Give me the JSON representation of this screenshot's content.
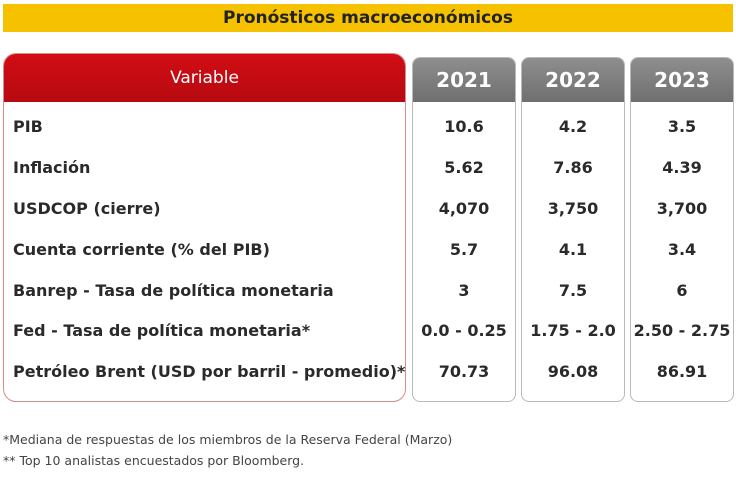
{
  "title": "Pronósticos macroeconómicos",
  "header": {
    "variable": "Variable",
    "years": [
      "2021",
      "2022",
      "2023"
    ]
  },
  "rows": [
    {
      "label": "PIB",
      "values": [
        "10.6",
        "4.2",
        "3.5"
      ]
    },
    {
      "label": "Inflación",
      "values": [
        "5.62",
        "7.86",
        "4.39"
      ]
    },
    {
      "label": "USDCOP (cierre)",
      "values": [
        "4,070",
        "3,750",
        "3,700"
      ]
    },
    {
      "label": "Cuenta corriente (% del PIB)",
      "values": [
        "5.7",
        "4.1",
        "3.4"
      ]
    },
    {
      "label": "Banrep - Tasa de política monetaria",
      "values": [
        "3",
        "7.5",
        "6"
      ]
    },
    {
      "label": "Fed - Tasa de política monetaria*",
      "values": [
        "0.0 - 0.25",
        "1.75 - 2.0",
        "2.50 - 2.75"
      ]
    },
    {
      "label": "Petróleo Brent (USD por barril - promedio)*",
      "values": [
        "70.73",
        "96.08",
        "86.91"
      ]
    }
  ],
  "footnotes": [
    "*Mediana de respuestas de los miembros de la Reserva Federal (Marzo)",
    "** Top 10 analistas encuestados por Bloomberg."
  ],
  "colors": {
    "title_bg": "#f6c200",
    "variable_header": "#c00a12",
    "year_header": "#7d7d7d"
  }
}
